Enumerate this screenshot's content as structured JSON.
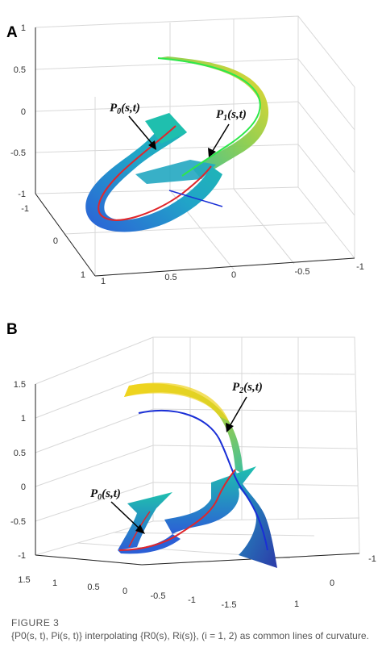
{
  "panels": [
    {
      "letter": "A",
      "z_ticks": [
        "1",
        "0.5",
        "0",
        "-0.5",
        "-1"
      ],
      "left_ticks": [
        "-1",
        "0",
        "1"
      ],
      "bottom_ticks": [
        "1",
        "0.5",
        "0",
        "-0.5",
        "-1"
      ],
      "curve_labels": [
        {
          "main": "P",
          "sub": "0",
          "args": "(s,t)"
        },
        {
          "main": "P",
          "sub": "1",
          "args": "(s,t)"
        }
      ]
    },
    {
      "letter": "B",
      "z_ticks": [
        "1.5",
        "1",
        "0.5",
        "0",
        "-0.5",
        "-1"
      ],
      "left_ticks": [
        "1.5",
        "1",
        "0.5",
        "0",
        "-0.5",
        "-1",
        "-1.5"
      ],
      "right_ticks": [
        "-1",
        "0",
        "1"
      ],
      "curve_labels": [
        {
          "main": "P",
          "sub": "2",
          "args": "(s,t)"
        },
        {
          "main": "P",
          "sub": "0",
          "args": "(s,t)"
        }
      ]
    }
  ],
  "caption": {
    "figure": "FIGURE 3",
    "text": "{P0(s, t), Pi(s, t)} interpolating {R0(s), Ri(s)}, (i = 1, 2) as common lines of curvature."
  },
  "colors": {
    "ribbon_blue": "#2a62d4",
    "ribbon_teal": "#19b3b0",
    "ribbon_yellow": "#f5d21c",
    "ribbon_green": "#7ed321",
    "curve_red": "#e0262b",
    "curve_blue": "#1a2fd6",
    "curve_green": "#2ee84a"
  }
}
